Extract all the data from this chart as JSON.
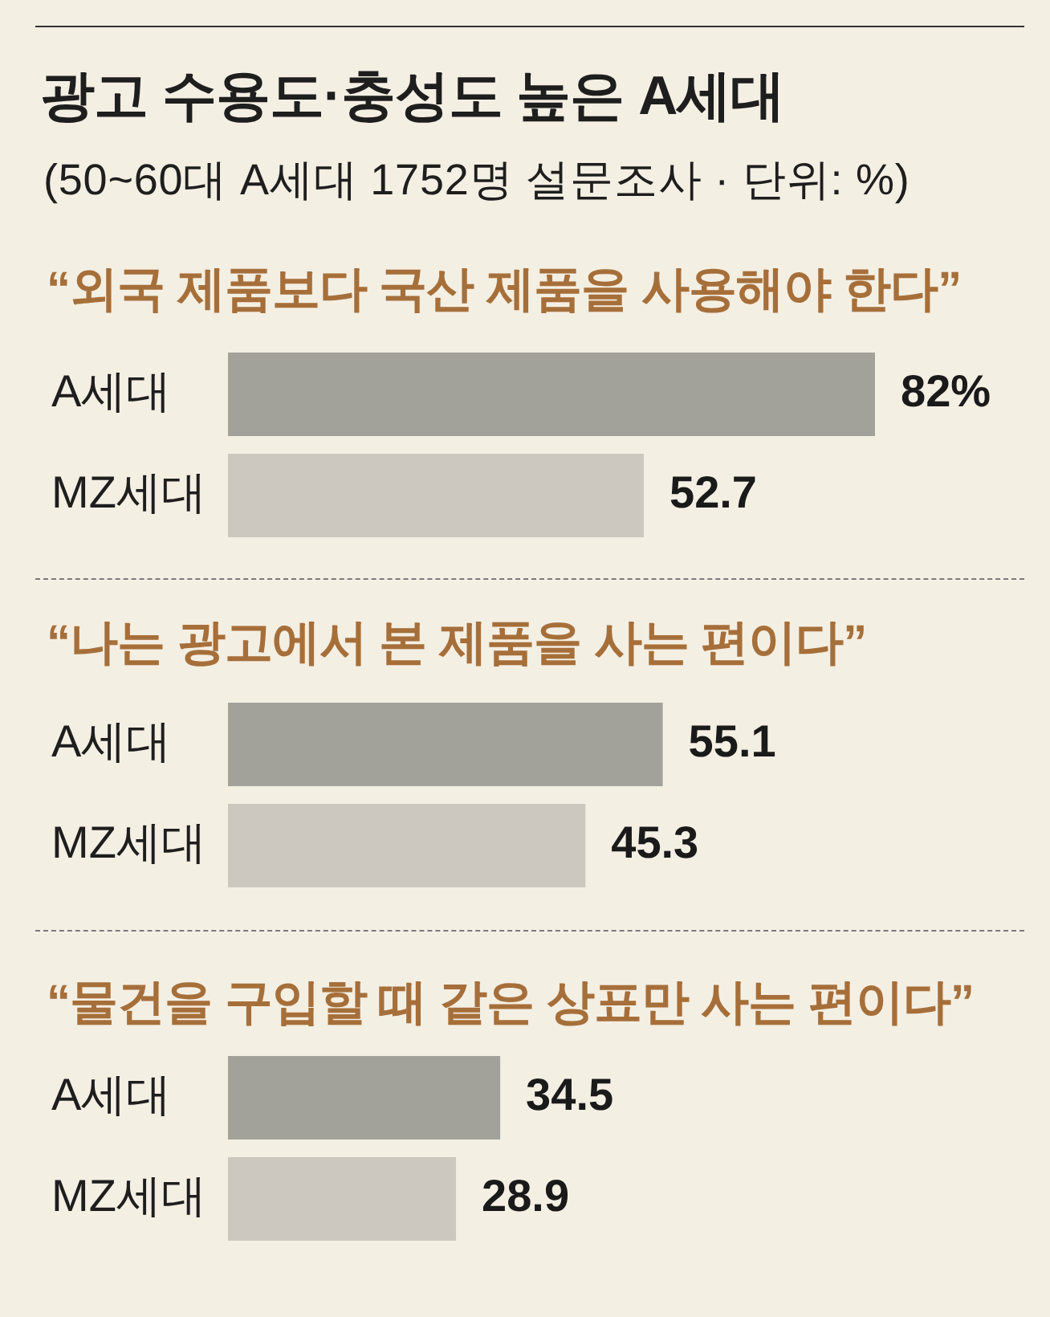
{
  "chart_data": [
    {
      "type": "other",
      "title": "광고 수용도·충성도 높은 A세대",
      "subtitle": "(50~60대 A세대 1752명 설문조사 · 단위: %)"
    },
    {
      "type": "bar",
      "orientation": "horizontal",
      "title": "“외국 제품보다 국산 제품을 사용해야 한다”",
      "categories": [
        "A세대",
        "MZ세대"
      ],
      "values": [
        82,
        52.7
      ],
      "colors": [
        "#a2a29a",
        "#ccc8bf"
      ],
      "value_labels": [
        "82%",
        "52.7"
      ],
      "tick_labels": "y"
    },
    {
      "type": "bar",
      "orientation": "horizontal",
      "title": "“나는 광고에서 본 제품을 사는 편이다”",
      "categories": [
        "A세대",
        "MZ세대"
      ],
      "values": [
        55.1,
        45.3
      ],
      "colors": [
        "#a2a29a",
        "#ccc8bf"
      ],
      "data_labels": true,
      "tick_labels": "y"
    },
    {
      "type": "bar",
      "orientation": "horizontal",
      "title": "“물건을 구입할 때 같은 상표만 사는 편이다”",
      "categories": [
        "A세대",
        "MZ세대"
      ],
      "values": [
        34.5,
        28.9
      ],
      "colors": [
        "#a2a29a",
        "#ccc8bf"
      ],
      "data_labels": true,
      "tick_labels": "y"
    }
  ]
}
